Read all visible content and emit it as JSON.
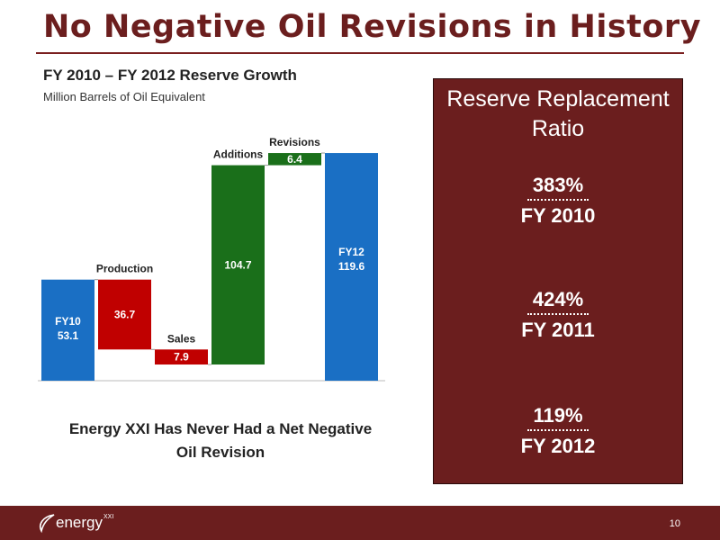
{
  "slide": {
    "title": "No Negative Oil Revisions in History",
    "page_number": "10"
  },
  "chart_data": {
    "type": "bar",
    "subtype": "waterfall",
    "title": "FY 2010 – FY 2012 Reserve Growth",
    "units": "Million Barrels of Oil Equivalent",
    "bars": [
      {
        "label": "FY10",
        "value": 53.1,
        "kind": "total",
        "color": "#1a6fc4"
      },
      {
        "label": "Production",
        "value": -36.7,
        "kind": "decrease",
        "color": "#c00000"
      },
      {
        "label": "Sales",
        "value": -7.9,
        "kind": "decrease",
        "color": "#c00000"
      },
      {
        "label": "Additions",
        "value": 104.7,
        "kind": "increase",
        "color": "#1a6f1a"
      },
      {
        "label": "Revisions",
        "value": 6.4,
        "kind": "increase",
        "color": "#1a6f1a"
      },
      {
        "label": "FY12",
        "value": 119.6,
        "kind": "total",
        "color": "#1a6fc4"
      }
    ],
    "xlabel": "",
    "ylabel": "",
    "grid": false
  },
  "note": "Energy XXI Has Never Had a Net Negative Oil Revision",
  "rrr": {
    "heading": "Reserve Replacement Ratio",
    "items": [
      {
        "pct": "383%",
        "year": "FY 2010"
      },
      {
        "pct": "424%",
        "year": "FY 2011"
      },
      {
        "pct": "119%",
        "year": "FY 2012"
      }
    ]
  },
  "footer": {
    "logo_text": "energy",
    "logo_sup": "XXI",
    "bg_color": "#6b1e1e"
  }
}
